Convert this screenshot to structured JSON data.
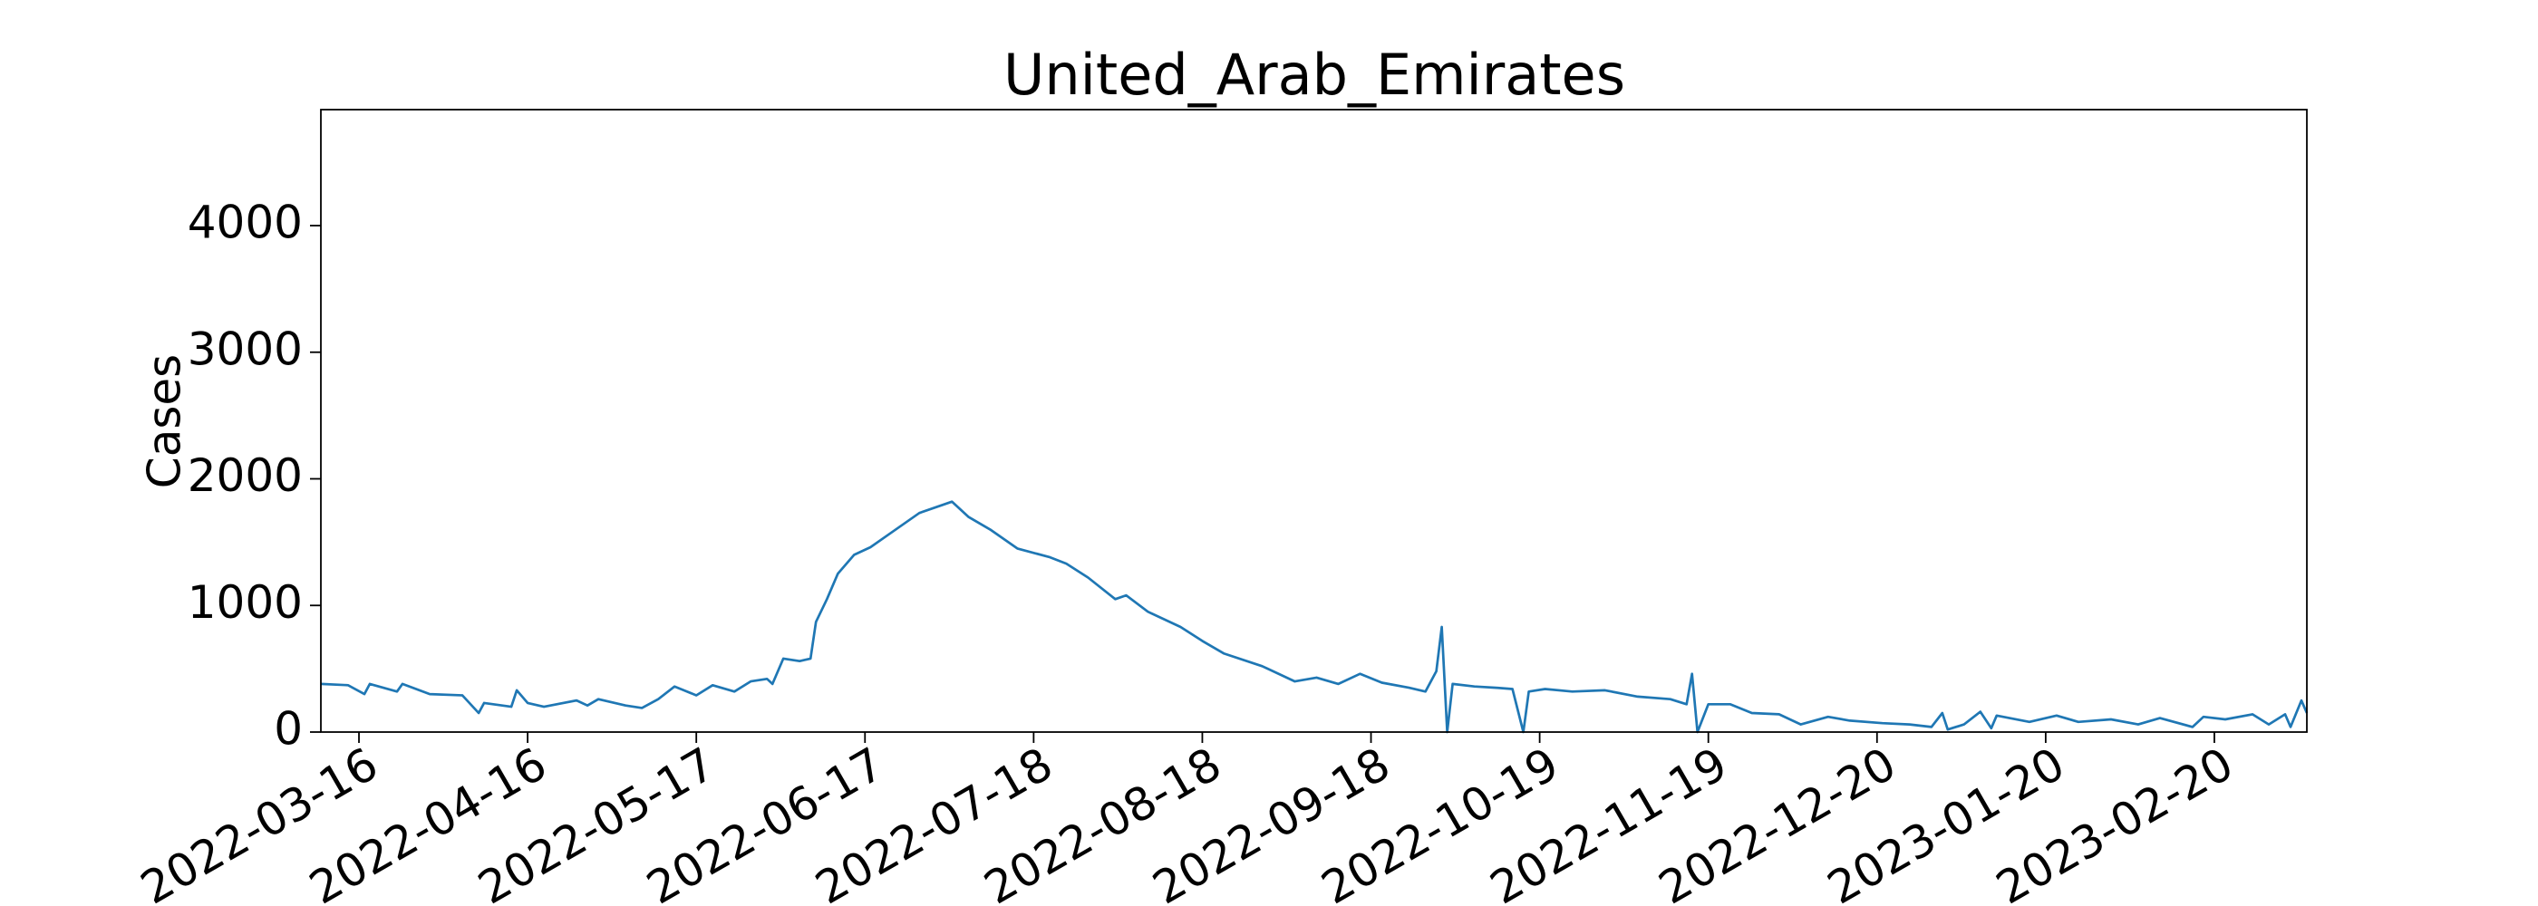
{
  "chart_data": {
    "type": "line",
    "title": "United_Arab_Emirates",
    "y_label": "Cases",
    "color": "#1f77b4",
    "x": [
      "2022-03-09",
      "2022-03-14",
      "2022-03-17",
      "2022-03-18",
      "2022-03-23",
      "2022-03-24",
      "2022-03-29",
      "2022-04-04",
      "2022-04-07",
      "2022-04-08",
      "2022-04-13",
      "2022-04-14",
      "2022-04-16",
      "2022-04-19",
      "2022-04-25",
      "2022-04-27",
      "2022-04-29",
      "2022-05-04",
      "2022-05-07",
      "2022-05-10",
      "2022-05-13",
      "2022-05-17",
      "2022-05-20",
      "2022-05-24",
      "2022-05-27",
      "2022-05-30",
      "2022-05-31",
      "2022-06-02",
      "2022-06-05",
      "2022-06-07",
      "2022-06-08",
      "2022-06-10",
      "2022-06-12",
      "2022-06-15",
      "2022-06-18",
      "2022-06-22",
      "2022-06-27",
      "2022-07-03",
      "2022-07-06",
      "2022-07-10",
      "2022-07-15",
      "2022-07-21",
      "2022-07-24",
      "2022-07-28",
      "2022-08-02",
      "2022-08-04",
      "2022-08-08",
      "2022-08-14",
      "2022-08-18",
      "2022-08-22",
      "2022-08-29",
      "2022-09-04",
      "2022-09-08",
      "2022-09-12",
      "2022-09-16",
      "2022-09-20",
      "2022-09-25",
      "2022-09-28",
      "2022-09-30",
      "2022-10-01",
      "2022-10-02",
      "2022-10-03",
      "2022-10-07",
      "2022-10-11",
      "2022-10-14",
      "2022-10-16",
      "2022-10-17",
      "2022-10-20",
      "2022-10-25",
      "2022-10-31",
      "2022-11-06",
      "2022-11-12",
      "2022-11-15",
      "2022-11-16",
      "2022-11-17",
      "2022-11-19",
      "2022-11-23",
      "2022-11-27",
      "2022-12-02",
      "2022-12-06",
      "2022-12-11",
      "2022-12-15",
      "2022-12-21",
      "2022-12-26",
      "2022-12-30",
      "2023-01-01",
      "2023-01-02",
      "2023-01-05",
      "2023-01-08",
      "2023-01-10",
      "2023-01-11",
      "2023-01-17",
      "2023-01-22",
      "2023-01-26",
      "2023-02-01",
      "2023-02-06",
      "2023-02-10",
      "2023-02-16",
      "2023-02-18",
      "2023-02-22",
      "2023-02-27",
      "2023-03-02",
      "2023-03-05",
      "2023-03-06",
      "2023-03-08",
      "2023-03-09"
    ],
    "values": [
      380,
      370,
      300,
      380,
      320,
      380,
      300,
      290,
      150,
      230,
      200,
      330,
      230,
      200,
      250,
      210,
      260,
      210,
      190,
      260,
      360,
      290,
      370,
      320,
      400,
      420,
      380,
      580,
      560,
      580,
      870,
      1050,
      1250,
      1400,
      1460,
      1580,
      1730,
      1820,
      1700,
      1600,
      1450,
      1380,
      1330,
      1220,
      1050,
      1080,
      950,
      830,
      720,
      620,
      520,
      400,
      430,
      380,
      460,
      390,
      350,
      320,
      480,
      830,
      0,
      380,
      360,
      350,
      340,
      0,
      320,
      340,
      320,
      330,
      280,
      260,
      220,
      460,
      0,
      220,
      220,
      150,
      140,
      60,
      120,
      90,
      70,
      60,
      40,
      150,
      20,
      60,
      160,
      30,
      130,
      80,
      130,
      80,
      100,
      60,
      110,
      40,
      120,
      100,
      140,
      60,
      140,
      40,
      250,
      150
    ],
    "xlim": [
      "2022-03-09",
      "2023-03-09"
    ],
    "xticks": [
      "2022-03-16",
      "2022-04-16",
      "2022-05-17",
      "2022-06-17",
      "2022-07-18",
      "2022-08-18",
      "2022-09-18",
      "2022-10-19",
      "2022-11-19",
      "2022-12-20",
      "2023-01-20",
      "2023-02-20"
    ],
    "ylim": [
      0,
      4916
    ],
    "yticks": [
      0,
      1000,
      2000,
      3000,
      4000
    ]
  }
}
